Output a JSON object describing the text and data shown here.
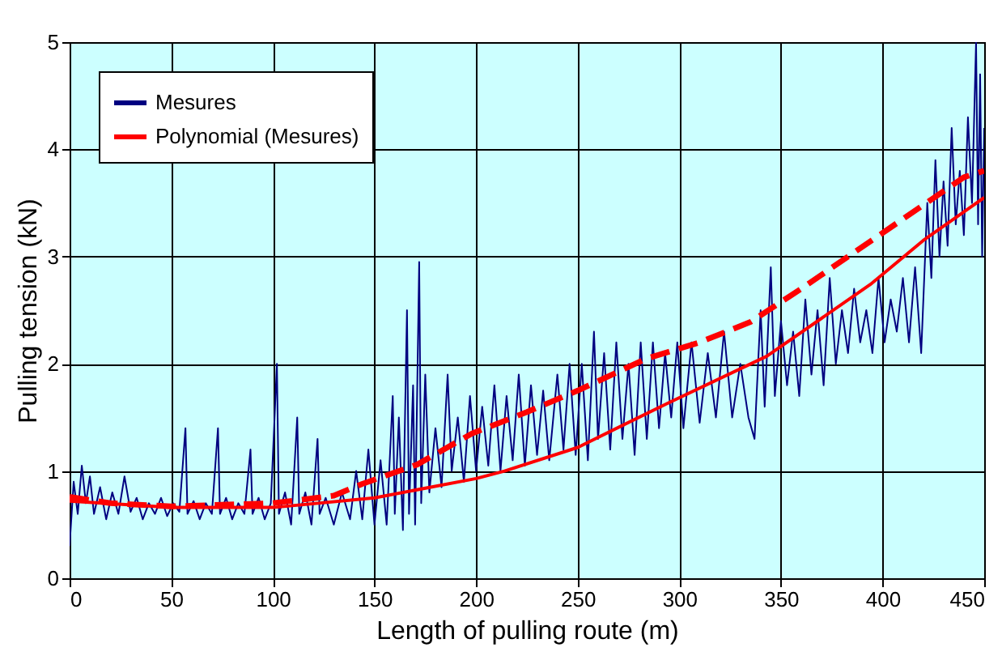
{
  "chart_data": {
    "type": "line",
    "xlabel": "Length of pulling route (m)",
    "ylabel": "Pulling tension (kN)",
    "xlim": [
      0,
      450
    ],
    "ylim": [
      0,
      5
    ],
    "xticks": [
      0,
      50,
      100,
      150,
      200,
      250,
      300,
      350,
      400,
      450
    ],
    "yticks": [
      0,
      1,
      2,
      3,
      4,
      5
    ],
    "grid": true,
    "legend": "top left",
    "series": [
      {
        "name": "Mesures",
        "color": "#000080",
        "line_style": "solid",
        "x": [
          0,
          2,
          4,
          6,
          8,
          10,
          12,
          15,
          18,
          21,
          24,
          27,
          30,
          33,
          36,
          39,
          42,
          45,
          48,
          51,
          54,
          57,
          58,
          61,
          64,
          67,
          70,
          73,
          74,
          77,
          80,
          83,
          86,
          89,
          90,
          93,
          96,
          99,
          102,
          103,
          106,
          109,
          112,
          113,
          116,
          119,
          122,
          123,
          126,
          130,
          134,
          138,
          141,
          144,
          147,
          150,
          153,
          156,
          159,
          160,
          162,
          164,
          166,
          167,
          169,
          170,
          172,
          173,
          175,
          177,
          180,
          183,
          186,
          188,
          191,
          194,
          197,
          200,
          203,
          206,
          209,
          212,
          215,
          218,
          221,
          224,
          227,
          230,
          233,
          236,
          240,
          243,
          246,
          249,
          252,
          255,
          258,
          260,
          263,
          266,
          269,
          272,
          275,
          278,
          281,
          284,
          287,
          290,
          293,
          296,
          299,
          302,
          306,
          310,
          314,
          318,
          322,
          326,
          330,
          334,
          337,
          340,
          342,
          345,
          347,
          350,
          353,
          356,
          359,
          362,
          365,
          368,
          371,
          374,
          377,
          380,
          383,
          386,
          389,
          392,
          395,
          398,
          401,
          404,
          407,
          410,
          413,
          416,
          419,
          422,
          424,
          426,
          428,
          430,
          432,
          434,
          436,
          438,
          440,
          442,
          444,
          446,
          447,
          448,
          449,
          450
        ],
        "values": [
          0.3,
          0.9,
          0.6,
          1.05,
          0.7,
          0.95,
          0.6,
          0.85,
          0.55,
          0.8,
          0.6,
          0.95,
          0.62,
          0.75,
          0.55,
          0.7,
          0.6,
          0.75,
          0.58,
          0.7,
          0.62,
          1.4,
          0.6,
          0.72,
          0.55,
          0.7,
          0.6,
          1.4,
          0.6,
          0.75,
          0.55,
          0.7,
          0.6,
          1.2,
          0.6,
          0.75,
          0.55,
          0.7,
          2.0,
          0.6,
          0.8,
          0.5,
          1.5,
          0.6,
          0.8,
          0.5,
          1.3,
          0.6,
          0.75,
          0.5,
          0.8,
          0.55,
          1.0,
          0.55,
          1.2,
          0.5,
          1.1,
          0.5,
          1.7,
          0.6,
          1.5,
          0.45,
          2.5,
          0.6,
          1.8,
          0.5,
          2.95,
          0.7,
          1.9,
          0.8,
          1.4,
          0.85,
          1.9,
          1.0,
          1.5,
          0.9,
          1.7,
          1.0,
          1.6,
          1.05,
          1.8,
          1.0,
          1.7,
          1.1,
          1.9,
          1.05,
          1.8,
          1.15,
          1.75,
          1.1,
          1.9,
          1.2,
          2.0,
          1.15,
          2.0,
          1.1,
          2.3,
          1.3,
          2.1,
          1.2,
          2.2,
          1.3,
          2.0,
          1.15,
          2.2,
          1.3,
          2.2,
          1.4,
          2.1,
          1.5,
          2.2,
          1.4,
          2.2,
          1.45,
          2.1,
          1.5,
          2.3,
          1.5,
          2.0,
          1.5,
          1.3,
          2.5,
          1.6,
          2.9,
          1.7,
          2.4,
          1.8,
          2.3,
          1.7,
          2.6,
          1.9,
          2.5,
          1.8,
          2.8,
          2.0,
          2.5,
          2.1,
          2.7,
          2.2,
          2.5,
          2.1,
          2.8,
          2.2,
          2.6,
          2.3,
          2.8,
          2.2,
          2.9,
          2.1,
          3.5,
          2.8,
          3.9,
          3.0,
          3.7,
          3.1,
          4.2,
          3.3,
          3.8,
          3.2,
          4.3,
          3.5,
          5.0,
          3.3,
          4.7,
          3.0,
          4.2
        ]
      },
      {
        "color": "#ff0000",
        "line_style": "dashed",
        "x": [
          0,
          20,
          50,
          100,
          130,
          144,
          171,
          198,
          225,
          250,
          284,
          310,
          335,
          360,
          383,
          410,
          440,
          450
        ],
        "values": [
          0.76,
          0.7,
          0.67,
          0.7,
          0.77,
          0.88,
          1.06,
          1.35,
          1.55,
          1.75,
          2.05,
          2.2,
          2.39,
          2.7,
          3.0,
          3.35,
          3.74,
          3.8
        ]
      },
      {
        "name": "Polynomial (Mesures)",
        "type": "line",
        "color": "#ff0000",
        "line_style": "solid",
        "x": [
          0,
          50,
          100,
          150,
          200,
          214,
          250,
          294,
          343,
          394,
          420,
          450
        ],
        "values": [
          0.72,
          0.66,
          0.66,
          0.75,
          0.93,
          1.0,
          1.22,
          1.63,
          2.07,
          2.74,
          3.15,
          3.55
        ]
      }
    ]
  }
}
